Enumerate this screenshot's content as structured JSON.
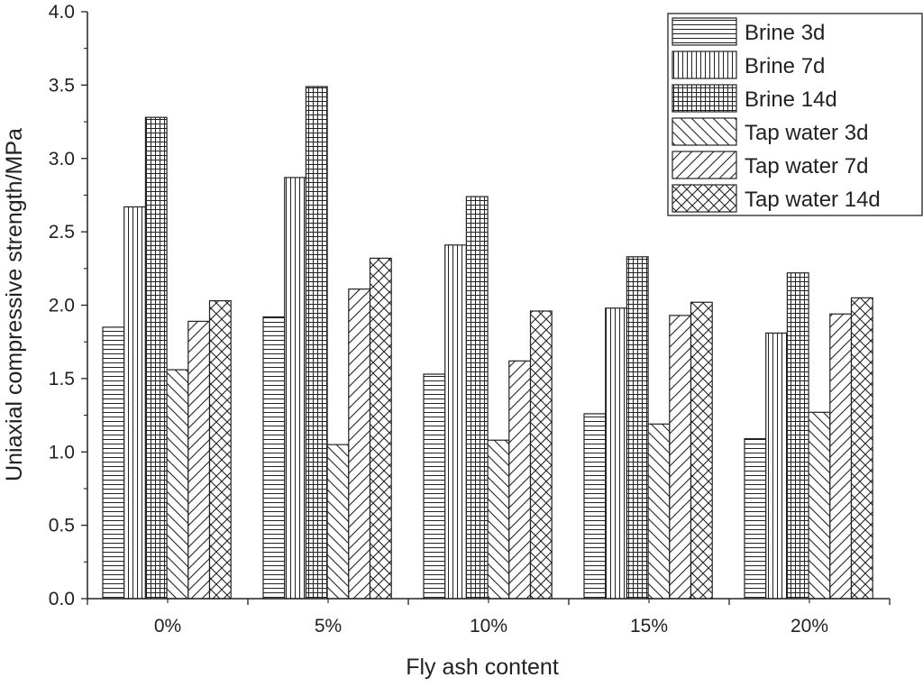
{
  "chart_data": {
    "type": "bar",
    "xlabel": "Fly ash content",
    "ylabel": "Uniaxial compressive strength/MPa",
    "categories": [
      "0%",
      "5%",
      "10%",
      "15%",
      "20%"
    ],
    "ylim": [
      0,
      4.0
    ],
    "yticks": [
      "0.0",
      "0.5",
      "1.0",
      "1.5",
      "2.0",
      "2.5",
      "3.0",
      "3.5",
      "4.0"
    ],
    "grid": false,
    "legend_position": "top-right",
    "series": [
      {
        "name": "Brine 3d",
        "pattern": "horizontal-lines",
        "values": [
          1.85,
          1.92,
          1.53,
          1.26,
          1.09
        ]
      },
      {
        "name": "Brine 7d",
        "pattern": "vertical-lines",
        "values": [
          2.67,
          2.87,
          2.41,
          1.98,
          1.81
        ]
      },
      {
        "name": "Brine 14d",
        "pattern": "grid",
        "values": [
          3.28,
          3.49,
          2.74,
          2.33,
          2.22
        ]
      },
      {
        "name": "Tap water 3d",
        "pattern": "back-diagonal",
        "values": [
          1.56,
          1.05,
          1.08,
          1.19,
          1.27
        ]
      },
      {
        "name": "Tap water 7d",
        "pattern": "forward-diagonal",
        "values": [
          1.89,
          2.11,
          1.62,
          1.93,
          1.94
        ]
      },
      {
        "name": "Tap water 14d",
        "pattern": "cross-hatch",
        "values": [
          2.03,
          2.32,
          1.96,
          2.02,
          2.05
        ]
      }
    ]
  },
  "colors": {
    "ink": "#222222",
    "bar_fill": "#ffffff"
  }
}
